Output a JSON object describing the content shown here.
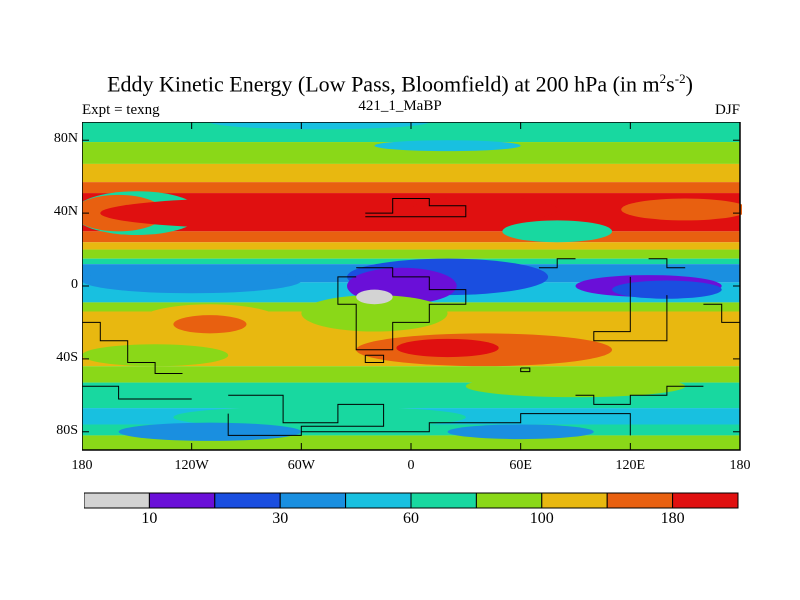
{
  "chart_data": {
    "type": "heatmap",
    "title_main": "Eddy Kinetic Energy (Low Pass, Bloomfield) at 200 hPa (in m",
    "title_sup1": "2",
    "title_mid": "s",
    "title_sup2": "-2",
    "title_end": ")",
    "left_label": "Expt = texng",
    "subtitle": "421_1_MaBP",
    "right_label": "DJF",
    "xlim": [
      -180,
      180
    ],
    "ylim": [
      -90,
      90
    ],
    "x_ticks": [
      {
        "value": -180,
        "label": "180"
      },
      {
        "value": -120,
        "label": "120W"
      },
      {
        "value": -60,
        "label": "60W"
      },
      {
        "value": 0,
        "label": "0"
      },
      {
        "value": 60,
        "label": "60E"
      },
      {
        "value": 120,
        "label": "120E"
      },
      {
        "value": 180,
        "label": "180"
      }
    ],
    "y_ticks": [
      {
        "value": 80,
        "label": "80N"
      },
      {
        "value": 40,
        "label": "40N"
      },
      {
        "value": 0,
        "label": "0"
      },
      {
        "value": -40,
        "label": "40S"
      },
      {
        "value": -80,
        "label": "80S"
      }
    ],
    "levels": [
      10,
      20,
      30,
      45,
      60,
      80,
      100,
      140,
      180
    ],
    "colors": [
      "#d3d3d3",
      "#6a0fd8",
      "#1a4ee0",
      "#1a8fe0",
      "#18c0e0",
      "#18d8a0",
      "#8ad818",
      "#e8b810",
      "#e86010",
      "#e01010"
    ],
    "colorbar_labels": [
      {
        "index": 1,
        "label": "10"
      },
      {
        "index": 3,
        "label": "30"
      },
      {
        "index": 5,
        "label": "60"
      },
      {
        "index": 7,
        "label": "100"
      },
      {
        "index": 9,
        "label": "180"
      }
    ]
  }
}
